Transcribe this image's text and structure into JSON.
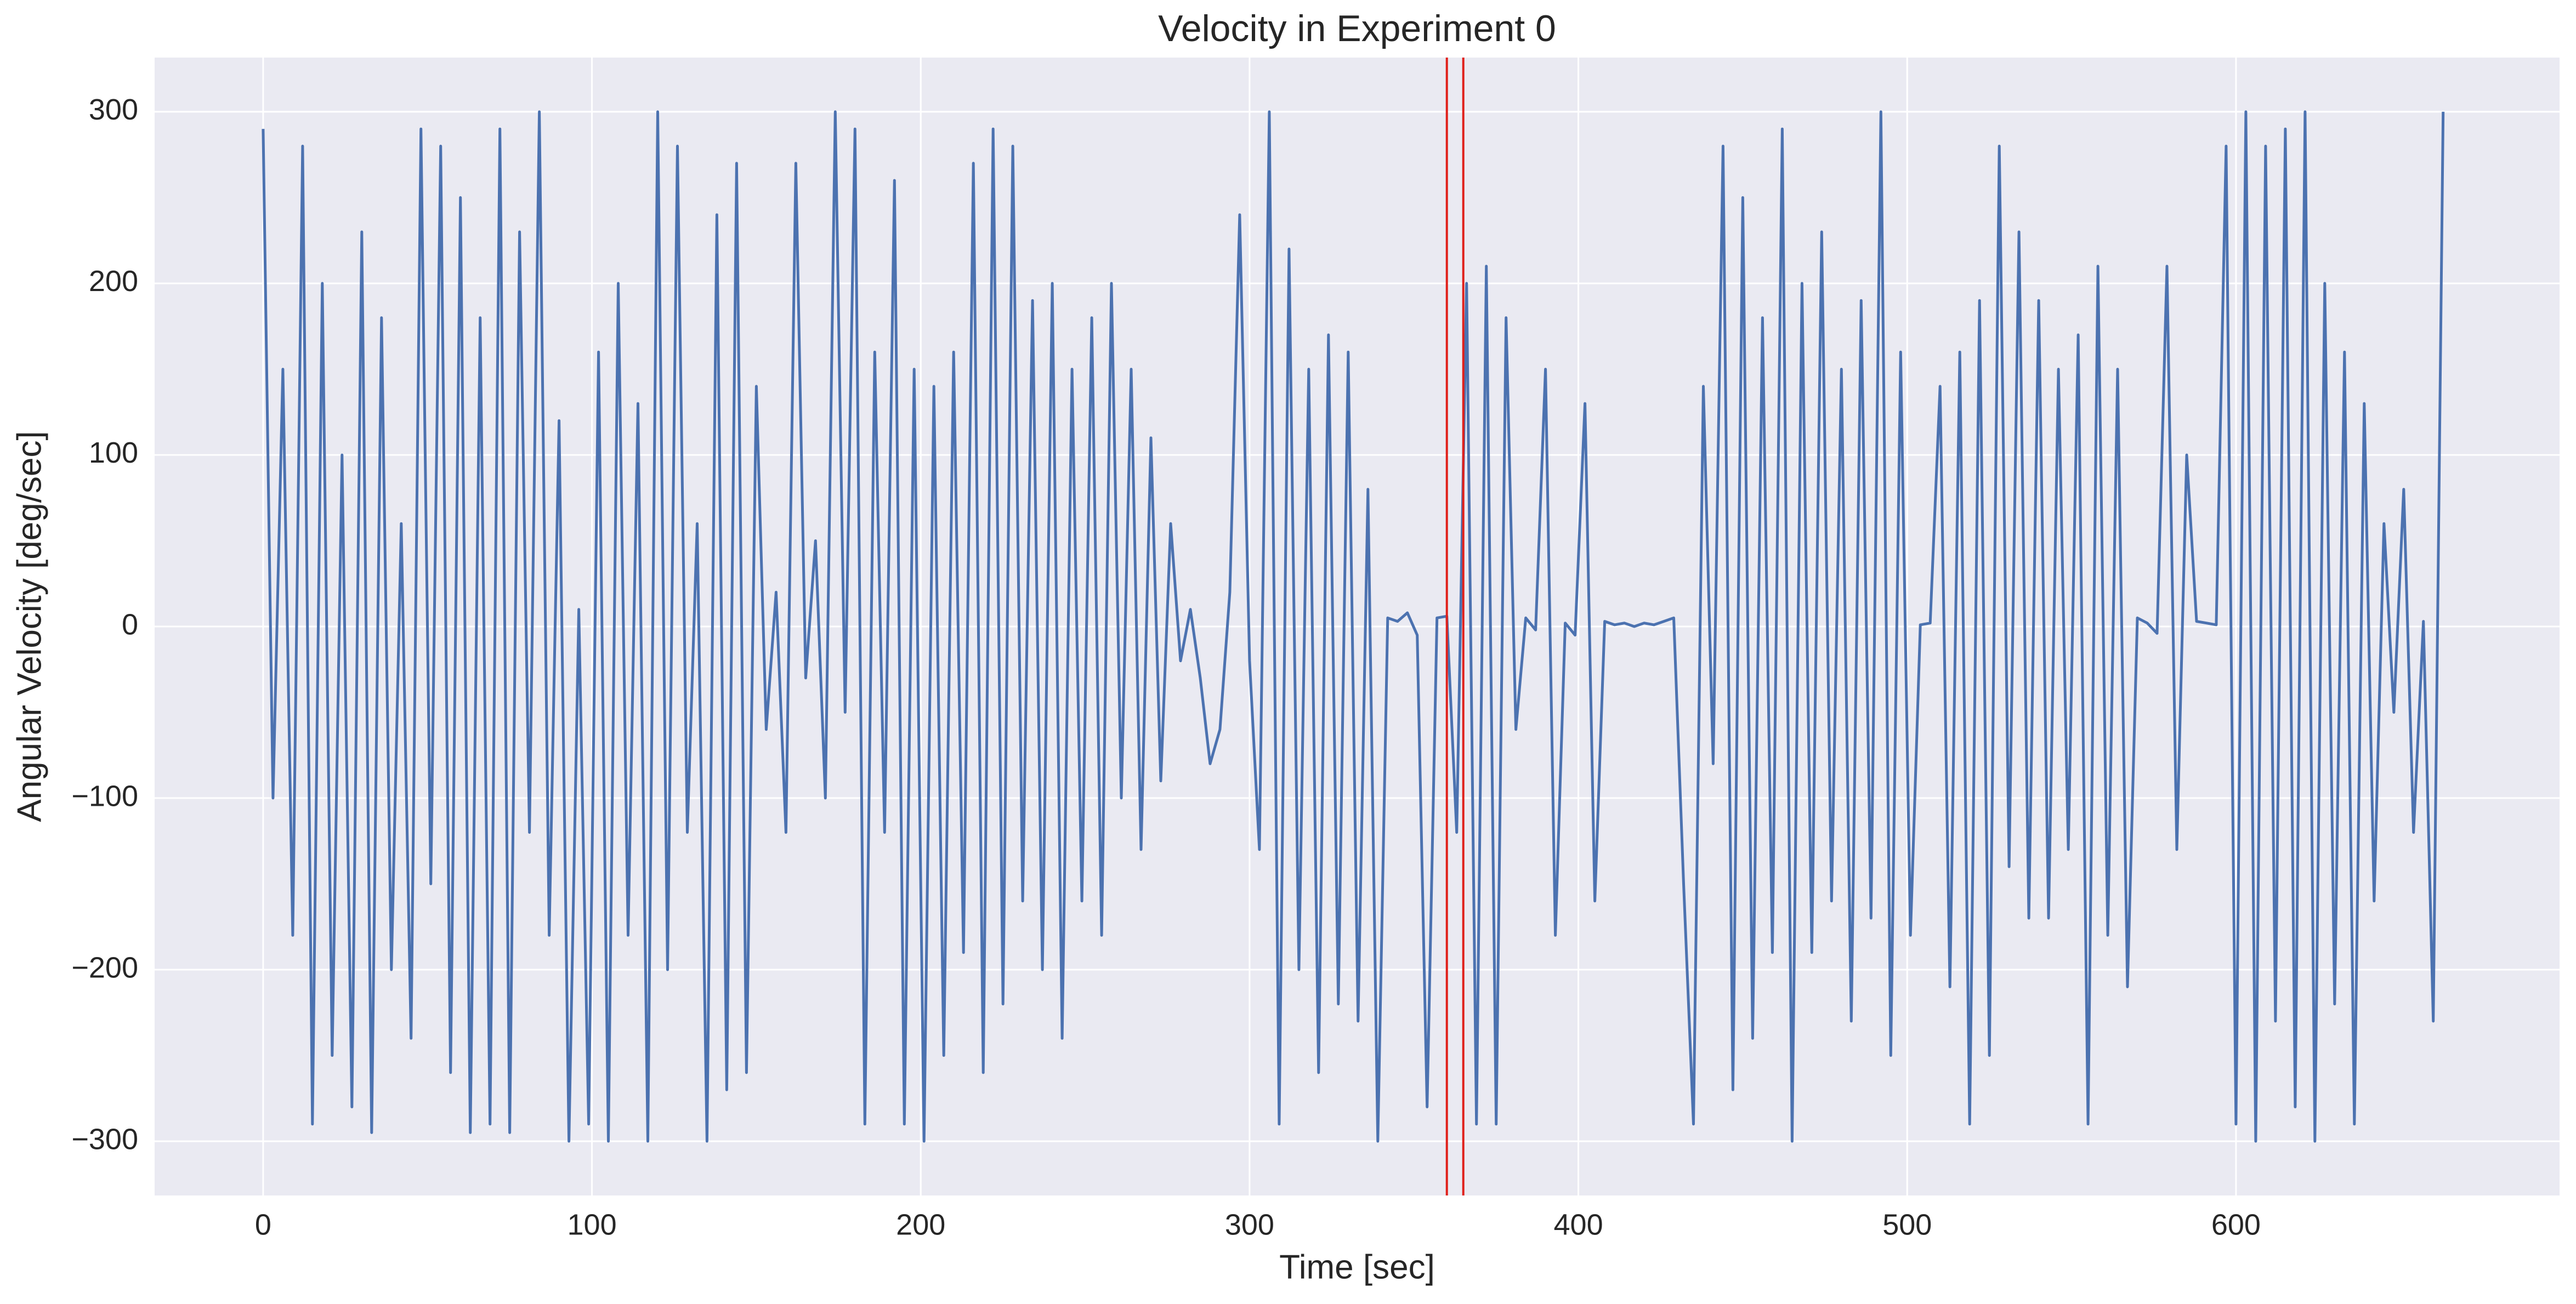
{
  "chart_data": {
    "type": "line",
    "title": "Velocity in Experiment 0",
    "xlabel": "Time [sec]",
    "ylabel": "Angular Velocity [deg/sec]",
    "color": "#4c72b0",
    "grid": true,
    "vlines": [
      360,
      365
    ],
    "vline_color": "#e0201b",
    "xlim": [
      -33,
      698.4
    ],
    "xticks": [
      0,
      100,
      200,
      300,
      400,
      500,
      600
    ],
    "ylim": [
      -331.6,
      331.6
    ],
    "yticks": [
      {
        "value": -300,
        "label": "−300"
      },
      {
        "value": -200,
        "label": "−200"
      },
      {
        "value": -100,
        "label": "−100"
      },
      0,
      100,
      200,
      300
    ],
    "x": [
      0,
      3,
      6,
      9,
      12,
      15,
      18,
      21,
      24,
      27,
      30,
      33,
      36,
      39,
      42,
      45,
      48,
      51,
      54,
      57,
      60,
      63,
      66,
      69,
      72,
      75,
      78,
      81,
      84,
      87,
      90,
      93,
      96,
      99,
      102,
      105,
      108,
      111,
      114,
      117,
      120,
      123,
      126,
      129,
      132,
      135,
      138,
      141,
      144,
      147,
      150,
      153,
      156,
      159,
      162,
      165,
      168,
      171,
      174,
      177,
      180,
      183,
      186,
      189,
      192,
      195,
      198,
      201,
      204,
      207,
      210,
      213,
      216,
      219,
      222,
      225,
      228,
      231,
      234,
      237,
      240,
      243,
      246,
      249,
      252,
      255,
      258,
      261,
      264,
      267,
      270,
      273,
      276,
      279,
      282,
      285,
      288,
      291,
      294,
      297,
      300,
      303,
      306,
      309,
      312,
      315,
      318,
      321,
      324,
      327,
      330,
      333,
      336,
      339,
      342,
      345,
      348,
      351,
      354,
      357,
      360,
      363,
      366,
      369,
      372,
      375,
      378,
      381,
      384,
      387,
      390,
      393,
      396,
      399,
      402,
      405,
      408,
      411,
      414,
      417,
      420,
      423,
      426,
      429,
      432,
      435,
      438,
      441,
      444,
      447,
      450,
      453,
      456,
      459,
      462,
      465,
      468,
      471,
      474,
      477,
      480,
      483,
      486,
      489,
      492,
      495,
      498,
      501,
      504,
      507,
      510,
      513,
      516,
      519,
      522,
      525,
      528,
      531,
      534,
      537,
      540,
      543,
      546,
      549,
      552,
      555,
      558,
      561,
      564,
      567,
      570,
      573,
      576,
      579,
      582,
      585,
      588,
      591,
      594,
      597,
      600,
      603,
      606,
      609,
      612,
      615,
      618,
      621,
      624,
      627,
      630,
      633,
      636,
      639,
      642,
      645,
      648,
      651,
      654,
      657,
      660,
      663
    ],
    "values": [
      290,
      -100,
      150,
      -180,
      280,
      -290,
      200,
      -250,
      100,
      -280,
      230,
      -295,
      180,
      -200,
      60,
      -240,
      290,
      -150,
      280,
      -260,
      250,
      -295,
      180,
      -290,
      290,
      -295,
      230,
      -120,
      300,
      -180,
      120,
      -300,
      10,
      -290,
      160,
      -300,
      200,
      -180,
      130,
      -300,
      300,
      -200,
      280,
      -120,
      60,
      -300,
      240,
      -270,
      270,
      -260,
      140,
      -60,
      20,
      -120,
      270,
      -30,
      50,
      -100,
      300,
      -50,
      290,
      -290,
      160,
      -120,
      260,
      -290,
      150,
      -300,
      140,
      -250,
      160,
      -190,
      270,
      -260,
      290,
      -220,
      280,
      -160,
      190,
      -200,
      200,
      -240,
      150,
      -160,
      180,
      -180,
      200,
      -100,
      150,
      -130,
      110,
      -90,
      60,
      -20,
      10,
      -30,
      -80,
      -60,
      20,
      240,
      -20,
      -130,
      300,
      -290,
      220,
      -200,
      150,
      -260,
      170,
      -220,
      160,
      -230,
      80,
      -300,
      5,
      3,
      8,
      -5,
      -280,
      5,
      6,
      -120,
      200,
      -290,
      210,
      -290,
      180,
      -60,
      5,
      -2,
      150,
      -180,
      2,
      -5,
      130,
      -160,
      3,
      1,
      2,
      0,
      2,
      1,
      3,
      5,
      -150,
      -290,
      140,
      -80,
      280,
      -270,
      250,
      -240,
      180,
      -190,
      290,
      -300,
      200,
      -190,
      230,
      -160,
      150,
      -230,
      190,
      -170,
      300,
      -250,
      160,
      -180,
      1,
      2,
      140,
      -210,
      160,
      -290,
      190,
      -250,
      280,
      -140,
      230,
      -170,
      190,
      -170,
      150,
      -130,
      170,
      -290,
      210,
      -180,
      150,
      -210,
      5,
      2,
      -4,
      210,
      -130,
      100,
      3,
      2,
      1,
      280,
      -290,
      300,
      -300,
      280,
      -230,
      290,
      -280,
      300,
      -300,
      200,
      -220,
      160,
      -290,
      130,
      -160,
      60,
      -50,
      80,
      -120,
      3,
      -230,
      300
    ]
  }
}
